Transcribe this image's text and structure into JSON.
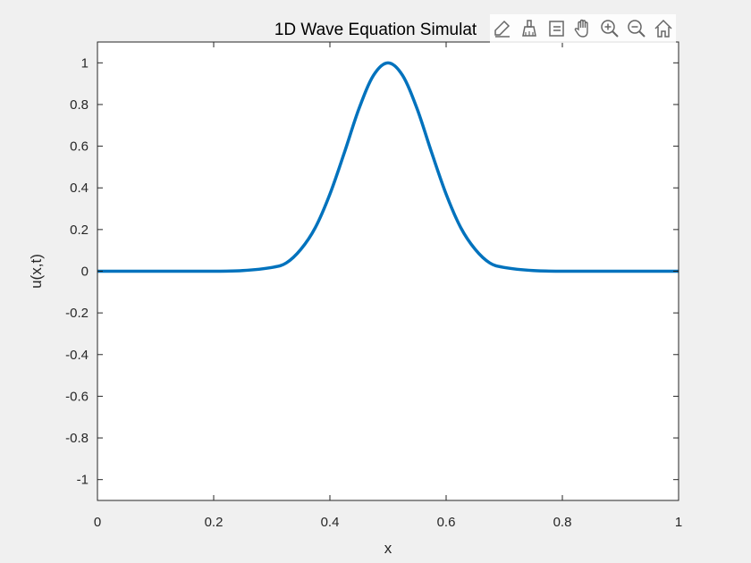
{
  "toolbar": {
    "icons": [
      "data-tips-icon",
      "brush-icon",
      "data-cursor-icon",
      "pan-hand-icon",
      "zoom-in-icon",
      "zoom-out-icon",
      "home-icon"
    ]
  },
  "colors": {
    "figure_background": "#f0f0f0",
    "axes_background": "#ffffff",
    "line": "#0072bd",
    "axis": "#262626"
  },
  "chart_data": {
    "type": "line",
    "title": "1D Wave Equation Simulat",
    "xlabel": "x",
    "ylabel": "u(x,t)",
    "xlim": [
      0,
      1
    ],
    "ylim": [
      -1.1,
      1.1
    ],
    "xticks": [
      0,
      0.2,
      0.4,
      0.6,
      0.8,
      1
    ],
    "xtick_labels": [
      "0",
      "0.2",
      "0.4",
      "0.6",
      "0.8",
      "1"
    ],
    "yticks": [
      -1,
      -0.8,
      -0.6,
      -0.4,
      -0.2,
      0,
      0.2,
      0.4,
      0.6,
      0.8,
      1
    ],
    "ytick_labels": [
      "-1",
      "-0.8",
      "-0.6",
      "-0.4",
      "-0.2",
      "0",
      "0.2",
      "0.4",
      "0.6",
      "0.8",
      "1"
    ],
    "grid": false,
    "box": true,
    "series": [
      {
        "color": "#0072bd",
        "x": [
          0,
          0.05,
          0.1,
          0.15,
          0.2,
          0.25,
          0.3,
          0.325,
          0.35,
          0.375,
          0.4,
          0.425,
          0.45,
          0.475,
          0.5,
          0.525,
          0.55,
          0.575,
          0.6,
          0.625,
          0.65,
          0.675,
          0.7,
          0.75,
          0.8,
          0.85,
          0.9,
          0.95,
          1
        ],
        "y": [
          0,
          0,
          0,
          0,
          0,
          0.003,
          0.018,
          0.04,
          0.105,
          0.21,
          0.37,
          0.57,
          0.78,
          0.94,
          1,
          0.94,
          0.78,
          0.57,
          0.37,
          0.21,
          0.105,
          0.04,
          0.018,
          0.003,
          0,
          0,
          0,
          0,
          0
        ]
      }
    ]
  }
}
